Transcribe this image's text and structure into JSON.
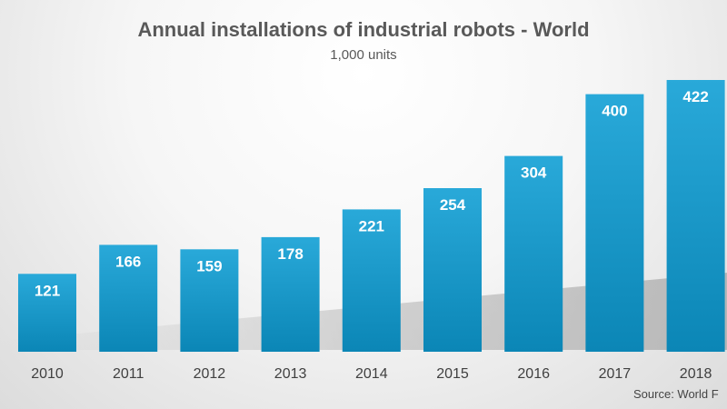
{
  "chart_data": {
    "type": "bar",
    "title": "Annual installations of industrial robots - World",
    "subtitle": "1,000 units",
    "categories": [
      "2010",
      "2011",
      "2012",
      "2013",
      "2014",
      "2015",
      "2016",
      "2017",
      "2018"
    ],
    "values": [
      121,
      166,
      159,
      178,
      221,
      254,
      304,
      400,
      422
    ],
    "xlabel": "",
    "ylabel": "",
    "ylim": [
      0,
      422
    ],
    "grid": false,
    "legend": "none",
    "data_labels": true,
    "colors": {
      "bar_top": "#29a9d9",
      "bar_bottom": "#0b86b6",
      "label_text": "#ffffff",
      "axis_text": "#404040",
      "title_text": "#595959"
    }
  },
  "source": "Source: World F"
}
